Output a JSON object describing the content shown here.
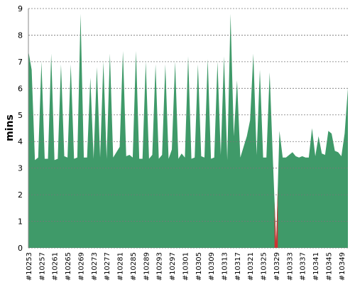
{
  "chart_data": {
    "type": "area",
    "ylabel": "mins",
    "categories": [
      "#10253",
      null,
      null,
      null,
      "#10257",
      null,
      null,
      null,
      "#10261",
      null,
      null,
      null,
      "#10265",
      null,
      null,
      null,
      "#10269",
      null,
      null,
      null,
      "#10273",
      null,
      null,
      null,
      "#10277",
      null,
      null,
      null,
      "#10281",
      null,
      null,
      null,
      "#10285",
      null,
      null,
      null,
      "#10289",
      null,
      null,
      null,
      "#10293",
      null,
      null,
      null,
      "#10297",
      null,
      null,
      null,
      "#10301",
      null,
      null,
      null,
      "#10305",
      null,
      null,
      null,
      "#10309",
      null,
      null,
      null,
      "#10313",
      null,
      null,
      null,
      "#10317",
      null,
      null,
      null,
      "#10321",
      null,
      null,
      null,
      "#10325",
      null,
      null,
      null,
      "#10329",
      null,
      null,
      null,
      "#10333",
      null,
      null,
      null,
      "#10337",
      null,
      null,
      null,
      "#10341",
      null,
      null,
      null,
      "#10345",
      null,
      null,
      null,
      "#10349",
      null,
      null
    ],
    "values": [
      7.4,
      6.7,
      3.3,
      3.4,
      7.0,
      3.35,
      3.35,
      7.3,
      3.3,
      3.35,
      6.9,
      3.45,
      3.4,
      6.9,
      3.35,
      3.4,
      8.8,
      3.4,
      3.4,
      6.4,
      3.35,
      6.8,
      3.4,
      7.0,
      3.35,
      7.3,
      3.4,
      3.6,
      3.8,
      7.4,
      3.45,
      3.5,
      3.4,
      7.4,
      3.35,
      3.35,
      7.0,
      3.35,
      3.5,
      6.9,
      3.35,
      3.5,
      6.9,
      3.35,
      3.7,
      7.0,
      3.35,
      3.55,
      3.4,
      7.2,
      3.35,
      3.4,
      6.9,
      3.45,
      3.4,
      7.1,
      3.35,
      3.4,
      7.0,
      3.5,
      7.2,
      3.3,
      8.8,
      4.2,
      6.3,
      3.4,
      3.8,
      4.2,
      4.8,
      7.3,
      3.5,
      6.7,
      3.4,
      3.4,
      6.6,
      3.3,
      0.2,
      4.4,
      3.4,
      3.4,
      3.5,
      3.6,
      3.45,
      3.4,
      3.45,
      3.4,
      3.4,
      4.5,
      3.45,
      4.2,
      3.55,
      3.5,
      4.4,
      4.3,
      3.65,
      3.6,
      3.45,
      4.3,
      6.0
    ],
    "color": "#3f9a69",
    "failed": [
      76
    ],
    "failed_color": "#cc3333",
    "ylim": [
      0,
      9
    ],
    "yticks": [
      0,
      1,
      2,
      3,
      4,
      5,
      6,
      7,
      8,
      9
    ],
    "grid": true
  }
}
